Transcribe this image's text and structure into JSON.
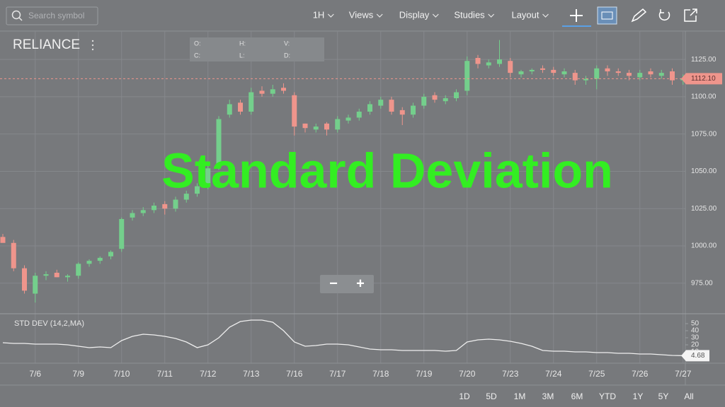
{
  "toolbar": {
    "search_placeholder": "Search symbol",
    "menus": [
      "1H",
      "Views",
      "Display",
      "Studies",
      "Layout"
    ]
  },
  "symbol": "RELIANCE",
  "ohlc_labels": [
    "O:",
    "H:",
    "V:",
    "C:",
    "L:",
    "D:"
  ],
  "overlay_title": "Standard Deviation",
  "zoom_buttons": [
    "−",
    "+"
  ],
  "range_buttons": [
    "1D",
    "5D",
    "1M",
    "3M",
    "6M",
    "YTD",
    "1Y",
    "5Y",
    "All"
  ],
  "chart_data": [
    {
      "type": "candlestick",
      "categories": [
        null,
        null,
        null,
        "7/6",
        null,
        null,
        null,
        "7/9",
        null,
        null,
        null,
        "7/10",
        null,
        null,
        null,
        "7/11",
        null,
        null,
        null,
        "7/12",
        null,
        null,
        null,
        "7/13",
        null,
        null,
        null,
        "7/16",
        null,
        null,
        null,
        "7/17",
        null,
        null,
        null,
        "7/18",
        null,
        null,
        null,
        "7/19",
        null,
        null,
        null,
        "7/20",
        null,
        null,
        null,
        "7/23",
        null,
        null,
        null,
        "7/24",
        null,
        null,
        null,
        "7/25",
        null,
        null,
        null,
        "7/26",
        null,
        null,
        null,
        "7/27"
      ],
      "open": [
        1006,
        1002,
        985,
        968,
        980,
        982,
        979,
        980,
        988,
        990,
        993,
        998,
        1019,
        1022,
        1024,
        1028,
        1025,
        1031,
        1035,
        1040,
        1053,
        1088,
        1096,
        1090,
        1104,
        1102,
        1106,
        1101,
        1082,
        1078,
        1082,
        1078,
        1084,
        1086,
        1090,
        1094,
        1098,
        1091,
        1088,
        1094,
        1101,
        1097,
        1099,
        1104,
        1126,
        1121,
        1122,
        1124,
        1115,
        1117,
        1119,
        1118,
        1115,
        1116,
        1111,
        1112,
        1119,
        1117,
        1116,
        1113,
        1117,
        1114,
        1117,
        1111
      ],
      "high": [
        1008,
        1004,
        987,
        982,
        983,
        984,
        981,
        989,
        991,
        993,
        997,
        1019,
        1024,
        1026,
        1029,
        1030,
        1033,
        1037,
        1042,
        1055,
        1087,
        1098,
        1098,
        1106,
        1107,
        1108,
        1109,
        1103,
        1082,
        1082,
        1083,
        1087,
        1088,
        1092,
        1097,
        1100,
        1100,
        1093,
        1096,
        1102,
        1103,
        1101,
        1105,
        1127,
        1128,
        1125,
        1138,
        1126,
        1118,
        1119,
        1121,
        1120,
        1119,
        1118,
        1114,
        1121,
        1121,
        1119,
        1118,
        1118,
        1119,
        1118,
        1119,
        1115
      ],
      "low": [
        1003,
        983,
        968,
        962,
        977,
        979,
        976,
        978,
        986,
        988,
        991,
        996,
        1017,
        1020,
        1022,
        1021,
        1023,
        1029,
        1033,
        1038,
        1051,
        1086,
        1088,
        1088,
        1100,
        1100,
        1102,
        1074,
        1076,
        1076,
        1074,
        1076,
        1082,
        1084,
        1088,
        1092,
        1088,
        1081,
        1086,
        1092,
        1096,
        1095,
        1097,
        1101,
        1119,
        1119,
        1120,
        1113,
        1113,
        1115,
        1116,
        1114,
        1113,
        1108,
        1108,
        1105,
        1114,
        1114,
        1111,
        1111,
        1113,
        1112,
        1108,
        1108
      ],
      "close": [
        1002,
        985,
        970,
        980,
        981,
        979,
        980,
        988,
        990,
        992,
        996,
        1018,
        1022,
        1024,
        1027,
        1025,
        1031,
        1035,
        1040,
        1052,
        1085,
        1095,
        1090,
        1103,
        1102,
        1105,
        1104,
        1080,
        1079,
        1080,
        1078,
        1085,
        1086,
        1090,
        1095,
        1098,
        1090,
        1088,
        1094,
        1100,
        1098,
        1099,
        1103,
        1124,
        1122,
        1123,
        1125,
        1116,
        1117,
        1118,
        1118,
        1116,
        1117,
        1111,
        1112,
        1119,
        1117,
        1116,
        1114,
        1116,
        1115,
        1116,
        1111,
        1112.1
      ],
      "up_color": "#74cf8c",
      "down_color": "#ef958c",
      "ylim": [
        955,
        1144
      ],
      "yticks": [
        {
          "value": 975,
          "label": "975.00"
        },
        {
          "value": 1000,
          "label": "1000.00"
        },
        {
          "value": 1025,
          "label": "1025.00"
        },
        {
          "value": 1050,
          "label": "1050.00"
        },
        {
          "value": 1075,
          "label": "1075.00"
        },
        {
          "value": 1100,
          "label": "1100.00"
        },
        {
          "value": 1125,
          "label": "1125.00"
        }
      ],
      "last_price": {
        "value": 1112.1,
        "label": "1112.10"
      },
      "grid": true
    },
    {
      "type": "line",
      "title": "STD DEV (14,2,MA)",
      "color": "#eeeeee",
      "values": [
        23,
        22,
        22,
        21,
        21,
        21,
        20,
        18,
        16,
        17,
        16,
        26,
        32,
        35,
        34,
        32,
        29,
        24,
        16,
        20,
        30,
        45,
        53,
        55,
        55,
        52,
        40,
        24,
        18,
        19,
        21,
        21,
        20,
        17,
        14,
        13,
        13,
        12,
        12,
        12,
        12,
        11,
        12,
        24,
        27,
        28,
        27,
        25,
        22,
        18,
        12,
        11,
        11,
        10,
        10,
        9,
        9,
        8,
        8,
        7,
        7,
        6,
        5,
        4.68
      ],
      "ylim": [
        -4,
        61
      ],
      "yticks": [
        10,
        20,
        30,
        40,
        50
      ],
      "last_value": {
        "value": 4.68,
        "label": "4.68"
      }
    }
  ]
}
